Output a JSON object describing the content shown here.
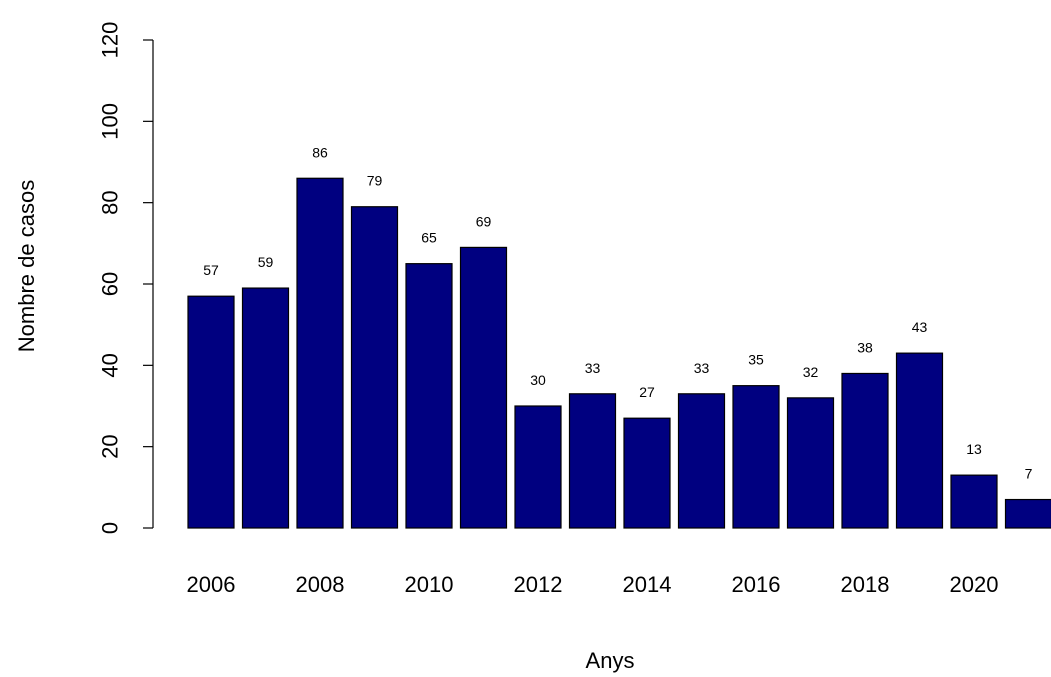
{
  "chart_data": {
    "type": "bar",
    "title": "",
    "xlabel": "Anys",
    "ylabel": "Nombre de casos",
    "ylim": [
      0,
      120
    ],
    "yticks": [
      0,
      20,
      40,
      60,
      80,
      100,
      120
    ],
    "categories": [
      "2006",
      "2007",
      "2008",
      "2009",
      "2010",
      "2011",
      "2012",
      "2013",
      "2014",
      "2015",
      "2016",
      "2017",
      "2018",
      "2019",
      "2020",
      "2021"
    ],
    "x_tick_labels": [
      "2006",
      "2008",
      "2010",
      "2012",
      "2014",
      "2016",
      "2018",
      "2020"
    ],
    "values": [
      57,
      59,
      86,
      79,
      65,
      69,
      30,
      33,
      27,
      33,
      35,
      32,
      38,
      43,
      13,
      7
    ],
    "data_labels": [
      "57",
      "59",
      "86",
      "79",
      "65",
      "69",
      "30",
      "33",
      "27",
      "33",
      "35",
      "32",
      "38",
      "43",
      "13",
      "7"
    ],
    "bar_color": "#000080",
    "grid": false,
    "legend": "none"
  }
}
